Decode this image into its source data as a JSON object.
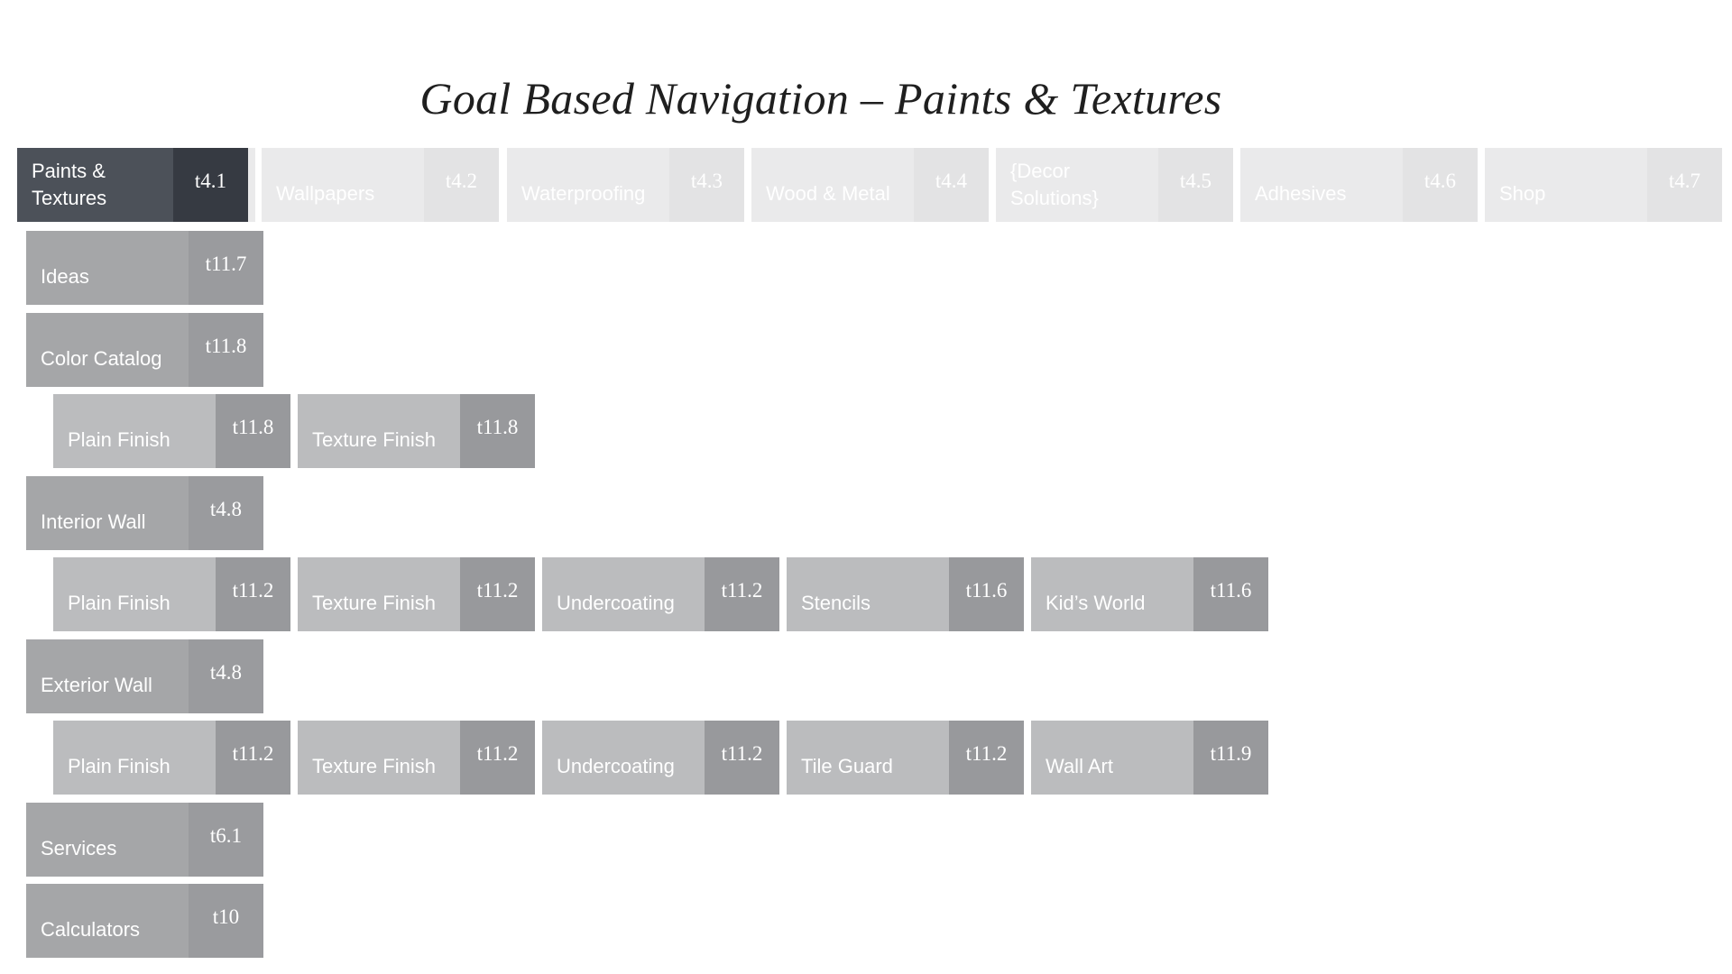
{
  "title": "Goal Based Navigation – Paints & Textures",
  "top_nav": [
    {
      "label": "Paints & Textures",
      "code": "t4.1"
    },
    {
      "label": "Wallpapers",
      "code": "t4.2"
    },
    {
      "label": "Waterproofing",
      "code": "t4.3"
    },
    {
      "label": "Wood & Metal",
      "code": "t4.4"
    },
    {
      "label": "{Decor Solutions}",
      "code": "t4.5"
    },
    {
      "label": "Adhesives",
      "code": "t4.6"
    },
    {
      "label": "Shop",
      "code": "t4.7"
    }
  ],
  "sub_nav": {
    "ideas": {
      "label": "Ideas",
      "code": "t11.7"
    },
    "color_catalog": {
      "label": "Color Catalog",
      "code": "t11.8",
      "children": [
        {
          "label": "Plain Finish",
          "code": "t11.8"
        },
        {
          "label": "Texture Finish",
          "code": "t11.8"
        }
      ]
    },
    "interior_wall": {
      "label": "Interior Wall",
      "code": "t4.8",
      "children": [
        {
          "label": "Plain Finish",
          "code": "t11.2"
        },
        {
          "label": "Texture Finish",
          "code": "t11.2"
        },
        {
          "label": "Undercoating",
          "code": "t11.2"
        },
        {
          "label": "Stencils",
          "code": "t11.6"
        },
        {
          "label": "Kid’s World",
          "code": "t11.6"
        }
      ]
    },
    "exterior_wall": {
      "label": "Exterior Wall",
      "code": "t4.8",
      "children": [
        {
          "label": "Plain Finish",
          "code": "t11.2"
        },
        {
          "label": "Texture Finish",
          "code": "t11.2"
        },
        {
          "label": "Undercoating",
          "code": "t11.2"
        },
        {
          "label": "Tile Guard",
          "code": "t11.2"
        },
        {
          "label": "Wall Art",
          "code": "t11.9"
        }
      ]
    },
    "services": {
      "label": "Services",
      "code": "t6.1"
    },
    "calculators": {
      "label": "Calculators",
      "code": "t10"
    }
  }
}
